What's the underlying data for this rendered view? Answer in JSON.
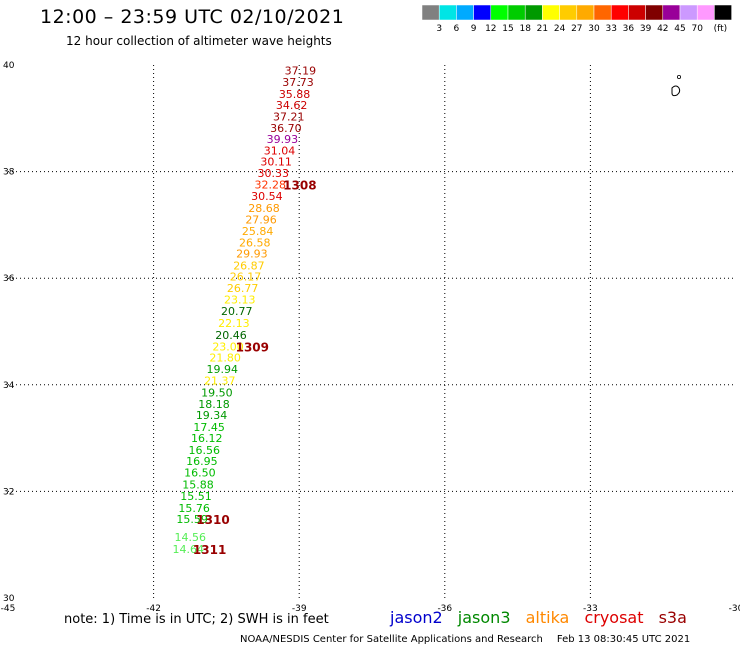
{
  "header": {
    "title": "12:00 – 23:59 UTC 02/10/2021",
    "subtitle": "12 hour collection of altimeter wave heights"
  },
  "colorbar": {
    "colors": [
      "#808080",
      "#00e5e5",
      "#00aaff",
      "#0000ff",
      "#00ff00",
      "#00cc00",
      "#009900",
      "#ffff00",
      "#ffcc00",
      "#ffaa00",
      "#ff6600",
      "#ff0000",
      "#cc0000",
      "#800000",
      "#990099",
      "#cc99ff",
      "#ff99ff",
      "#000000"
    ],
    "labels": [
      "3",
      "6",
      "9",
      "12",
      "15",
      "18",
      "21",
      "24",
      "27",
      "30",
      "33",
      "36",
      "39",
      "42",
      "45",
      "70"
    ],
    "unit": "(ft)"
  },
  "map": {
    "lon_labels": [
      "-45",
      "-42",
      "-39",
      "-36",
      "-33",
      "-30"
    ],
    "lat_labels": [
      "30",
      "32",
      "34",
      "36",
      "38",
      "40"
    ],
    "lon_range": [
      -45,
      -30
    ],
    "lat_range": [
      30,
      40
    ],
    "grid": true
  },
  "observations": [
    {
      "text": "37.19",
      "lon": -39.3,
      "lat": 39.9,
      "color": "#990000"
    },
    {
      "text": "37.73",
      "lon": -39.35,
      "lat": 39.68,
      "color": "#990000"
    },
    {
      "text": "35.88",
      "lon": -39.42,
      "lat": 39.46,
      "color": "#cc0000"
    },
    {
      "text": "34.62",
      "lon": -39.48,
      "lat": 39.25,
      "color": "#cc0000"
    },
    {
      "text": "37.21",
      "lon": -39.54,
      "lat": 39.03,
      "color": "#990000"
    },
    {
      "text": "36.70",
      "lon": -39.6,
      "lat": 38.82,
      "color": "#990000"
    },
    {
      "text": "39.93",
      "lon": -39.67,
      "lat": 38.61,
      "color": "#990099"
    },
    {
      "text": "31.04",
      "lon": -39.73,
      "lat": 38.4,
      "color": "#dd0000"
    },
    {
      "text": "30.11",
      "lon": -39.8,
      "lat": 38.19,
      "color": "#dd0000"
    },
    {
      "text": "30.33",
      "lon": -39.86,
      "lat": 37.97,
      "color": "#dd0000"
    },
    {
      "text": "32.28",
      "lon": -39.92,
      "lat": 37.76,
      "color": "#ff3300"
    },
    {
      "text": "30.54",
      "lon": -39.99,
      "lat": 37.54,
      "color": "#dd0000"
    },
    {
      "text": "28.68",
      "lon": -40.05,
      "lat": 37.32,
      "color": "#ff9900"
    },
    {
      "text": "27.96",
      "lon": -40.11,
      "lat": 37.1,
      "color": "#ff9900"
    },
    {
      "text": "25.84",
      "lon": -40.18,
      "lat": 36.89,
      "color": "#ffaa00"
    },
    {
      "text": "26.58",
      "lon": -40.24,
      "lat": 36.67,
      "color": "#ffaa00"
    },
    {
      "text": "29.93",
      "lon": -40.3,
      "lat": 36.46,
      "color": "#ff9900"
    },
    {
      "text": "26.87",
      "lon": -40.36,
      "lat": 36.24,
      "color": "#ffcc00"
    },
    {
      "text": "26.17",
      "lon": -40.43,
      "lat": 36.03,
      "color": "#ffcc00"
    },
    {
      "text": "26.77",
      "lon": -40.49,
      "lat": 35.82,
      "color": "#ffcc00"
    },
    {
      "text": "23.13",
      "lon": -40.55,
      "lat": 35.6,
      "color": "#ffee00"
    },
    {
      "text": "20.77",
      "lon": -40.61,
      "lat": 35.38,
      "color": "#006600"
    },
    {
      "text": "22.13",
      "lon": -40.67,
      "lat": 35.16,
      "color": "#ffee00"
    },
    {
      "text": "20.46",
      "lon": -40.73,
      "lat": 34.93,
      "color": "#006600"
    },
    {
      "text": "23.00",
      "lon": -40.79,
      "lat": 34.72,
      "color": "#ffee00"
    },
    {
      "text": "21.80",
      "lon": -40.85,
      "lat": 34.51,
      "color": "#ffee00"
    },
    {
      "text": "19.94",
      "lon": -40.91,
      "lat": 34.3,
      "color": "#009900"
    },
    {
      "text": "21.37",
      "lon": -40.96,
      "lat": 34.08,
      "color": "#ffee00"
    },
    {
      "text": "19.50",
      "lon": -41.02,
      "lat": 33.86,
      "color": "#009900"
    },
    {
      "text": "18.18",
      "lon": -41.08,
      "lat": 33.64,
      "color": "#009900"
    },
    {
      "text": "19.34",
      "lon": -41.13,
      "lat": 33.43,
      "color": "#009900"
    },
    {
      "text": "17.45",
      "lon": -41.18,
      "lat": 33.21,
      "color": "#00bb00"
    },
    {
      "text": "16.12",
      "lon": -41.23,
      "lat": 33.0,
      "color": "#00bb00"
    },
    {
      "text": "16.56",
      "lon": -41.28,
      "lat": 32.78,
      "color": "#00bb00"
    },
    {
      "text": "16.95",
      "lon": -41.33,
      "lat": 32.57,
      "color": "#00bb00"
    },
    {
      "text": "16.50",
      "lon": -41.37,
      "lat": 32.35,
      "color": "#00bb00"
    },
    {
      "text": "15.88",
      "lon": -41.41,
      "lat": 32.13,
      "color": "#00bb00"
    },
    {
      "text": "15.51",
      "lon": -41.45,
      "lat": 31.91,
      "color": "#00bb00"
    },
    {
      "text": "15.76",
      "lon": -41.49,
      "lat": 31.69,
      "color": "#00bb00"
    },
    {
      "text": "15.59",
      "lon": -41.53,
      "lat": 31.48,
      "color": "#00bb00"
    },
    {
      "text": "14.56",
      "lon": -41.57,
      "lat": 31.14,
      "color": "#55ee55"
    },
    {
      "text": "14.64",
      "lon": -41.61,
      "lat": 30.92,
      "color": "#55ee55"
    }
  ],
  "track_labels": [
    {
      "text": "1308",
      "lon": -39.33,
      "lat": 37.76,
      "color": "#990000"
    },
    {
      "text": "1309",
      "lon": -40.31,
      "lat": 34.72,
      "color": "#990000"
    },
    {
      "text": "1310",
      "lon": -41.12,
      "lat": 31.48,
      "color": "#990000"
    },
    {
      "text": "1311",
      "lon": -41.19,
      "lat": 30.92,
      "color": "#990000"
    }
  ],
  "note": "note: 1) Time is in UTC; 2) SWH is in feet",
  "missions": [
    {
      "name": "jason2",
      "color": "#0000cc"
    },
    {
      "name": "jason3",
      "color": "#008800"
    },
    {
      "name": "altika",
      "color": "#ff8800"
    },
    {
      "name": "cryosat",
      "color": "#dd0000"
    },
    {
      "name": "s3a",
      "color": "#990000"
    }
  ],
  "footer": {
    "org": "NOAA/NESDIS Center for Satellite Applications and Research",
    "timestamp": "Feb 13 08:30:45 UTC 2021"
  }
}
